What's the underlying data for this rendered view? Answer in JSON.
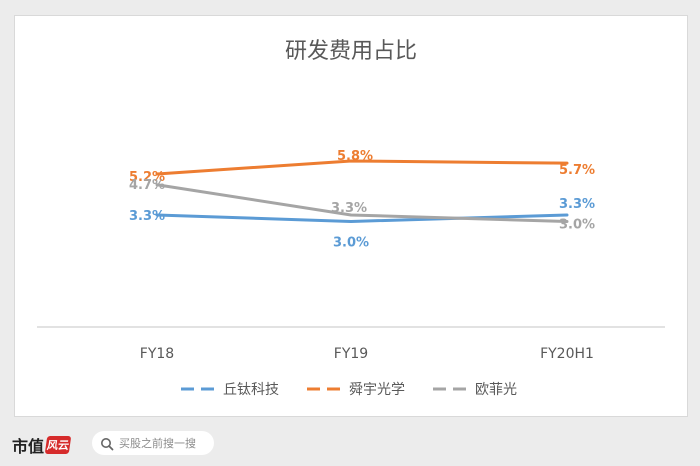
{
  "chart_data": {
    "type": "line",
    "title": "研发费用占比",
    "categories": [
      "FY18",
      "FY19",
      "FY20H1"
    ],
    "value_unit": "%",
    "grid": false,
    "legend_position": "bottom",
    "series": [
      {
        "name": "丘钛科技",
        "color": "#5b9bd5",
        "values": [
          3.3,
          3.0,
          3.3
        ],
        "labels": [
          "3.3%",
          "3.0%",
          "3.3%"
        ]
      },
      {
        "name": "舜宇光学",
        "color": "#ed7d31",
        "values": [
          5.2,
          5.8,
          5.7
        ],
        "labels": [
          "5.2%",
          "5.8%",
          "5.7%"
        ]
      },
      {
        "name": "欧菲光",
        "color": "#a5a5a5",
        "values": [
          4.7,
          3.3,
          3.0
        ],
        "labels": [
          "4.7%",
          "3.3%",
          "3.0%"
        ]
      }
    ]
  },
  "footer": {
    "brand": "市值",
    "brand_seal": "风云",
    "search_placeholder": "买股之前搜一搜",
    "search_icon": "search-icon"
  }
}
